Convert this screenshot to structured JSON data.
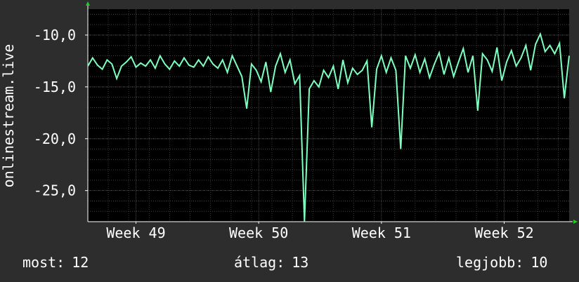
{
  "chart_data": {
    "type": "line",
    "ylabel": "onlinestream.live",
    "xlim": [
      0,
      100
    ],
    "ylim": [
      -28,
      -7.5
    ],
    "yticks": [
      -10.0,
      -15.0,
      -20.0,
      -25.0
    ],
    "yticklabels": [
      "-10,0",
      "-15,0",
      "-20,0",
      "-25,0"
    ],
    "xticks": [
      {
        "label": "Week 49",
        "x": 10
      },
      {
        "label": "Week 50",
        "x": 35.5
      },
      {
        "label": "Week 51",
        "x": 61
      },
      {
        "label": "Week 52",
        "x": 86.5
      }
    ],
    "grid": true,
    "line_color": "#7fffbf",
    "series": [
      {
        "x": [
          0,
          1,
          2,
          3,
          4,
          5,
          6,
          7,
          8,
          9,
          10,
          11,
          12,
          13,
          14,
          15,
          16,
          17,
          18,
          19,
          20,
          21,
          22,
          23,
          24,
          25,
          26,
          27,
          28,
          29,
          30,
          31,
          32,
          33,
          34,
          35,
          36,
          37,
          38,
          39,
          40,
          41,
          42,
          43,
          44,
          45,
          46,
          47,
          48,
          49,
          50,
          51,
          52,
          53,
          54,
          55,
          56,
          57,
          58,
          59,
          60,
          61,
          62,
          63,
          64,
          65,
          66,
          67,
          68,
          69,
          70,
          71,
          72,
          73,
          74,
          75,
          76,
          77,
          78,
          79,
          80,
          81,
          82,
          83,
          84,
          85,
          86,
          87,
          88,
          89,
          90,
          91,
          92,
          93,
          94,
          95,
          96,
          97,
          98,
          99,
          100
        ],
        "y": [
          -13.0,
          -12.2,
          -12.9,
          -13.3,
          -12.4,
          -12.8,
          -14.2,
          -13.0,
          -12.6,
          -12.1,
          -13.1,
          -12.7,
          -13.0,
          -12.4,
          -13.2,
          -12.0,
          -12.8,
          -13.3,
          -12.5,
          -13.0,
          -12.2,
          -12.9,
          -13.1,
          -12.4,
          -13.0,
          -12.1,
          -12.8,
          -13.2,
          -12.4,
          -13.6,
          -12.0,
          -13.0,
          -14.0,
          -17.1,
          -12.8,
          -13.4,
          -14.5,
          -12.6,
          -15.5,
          -13.0,
          -11.8,
          -13.6,
          -12.4,
          -14.7,
          -13.9,
          -28.0,
          -15.2,
          -14.4,
          -15.0,
          -13.4,
          -14.1,
          -13.0,
          -15.2,
          -12.4,
          -14.6,
          -13.2,
          -13.8,
          -13.4,
          -12.5,
          -18.9,
          -13.3,
          -12.0,
          -13.6,
          -12.2,
          -13.4,
          -21.0,
          -12.0,
          -13.2,
          -11.9,
          -13.6,
          -12.3,
          -14.1,
          -12.8,
          -11.7,
          -13.8,
          -12.2,
          -14.0,
          -12.6,
          -11.3,
          -13.6,
          -12.0,
          -17.3,
          -11.8,
          -12.4,
          -13.5,
          -11.2,
          -14.4,
          -12.6,
          -11.5,
          -13.0,
          -12.2,
          -11.0,
          -13.4,
          -10.9,
          -9.9,
          -11.6,
          -11.0,
          -11.8,
          -10.8,
          -16.1,
          -12.0
        ]
      }
    ]
  },
  "legend": {
    "current_label": "most:",
    "current_value": "12",
    "average_label": "átlag:",
    "average_value": "13",
    "best_label": "legjobb:",
    "best_value": "10"
  }
}
